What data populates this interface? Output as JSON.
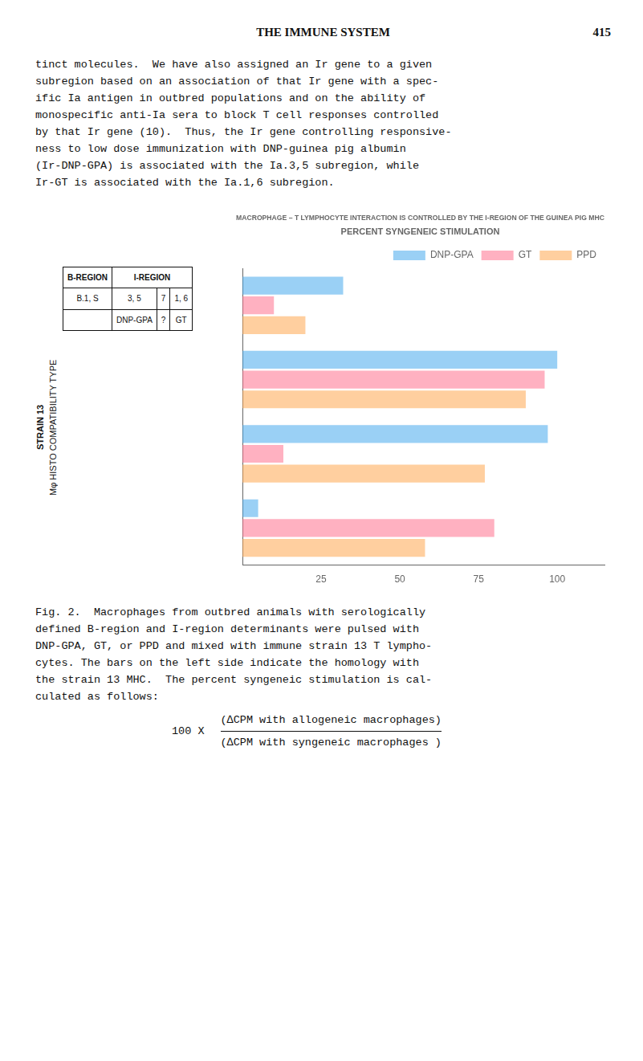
{
  "chart_data": {
    "type": "bar",
    "orientation": "horizontal",
    "title": "MACROPHAGE – T LYMPHOCYTE INTERACTION IS CONTROLLED BY THE I-REGION OF THE GUINEA PIG MHC",
    "subtitle": "PERCENT SYNGENEIC STIMULATION",
    "categories": [
      null,
      null,
      null,
      null
    ],
    "series": [
      {
        "name": "DNP-GPA",
        "values": [
          32,
          100,
          97,
          5
        ]
      },
      {
        "name": "GT",
        "values": [
          10,
          96,
          13,
          80
        ]
      },
      {
        "name": "PPD",
        "values": [
          20,
          90,
          77,
          58
        ]
      }
    ],
    "xlim": [
      0,
      115
    ],
    "xticks": [
      25,
      50,
      75,
      100
    ],
    "grid": false,
    "legend": "upper right",
    "tick_labels": "x",
    "annotations": [
      [
        "THE IMMUNE SYSTEM",
        "415"
      ],
      [
        "tinct molecules.  We have also assigned an Ir gene to a given",
        "subregion based on an association of that Ir gene with a spec-",
        "ific Ia antigen in outbred populations and on the ability of",
        "monospecific anti-Ia sera to block T cell responses controlled",
        "by that Ir gene (10).  Thus, the Ir gene controlling responsive-",
        "ness to low dose immunization with DNP-guinea pig albumin",
        "(Ir-DNP-GPA) is associated with the Ia.3,5 subregion, while",
        "Ir-GT is associated with the Ia.1,6 subregion."
      ],
      [
        "STRAIN 13",
        "B-REGION",
        "I-REGION",
        "B.1, S",
        "3, 5",
        "7",
        "1, 6",
        "DNP-GPA",
        "?",
        "GT",
        "Mφ HISTO COMPATIBILITY TYPE"
      ],
      [
        "Fig. 2.  Macrophages from outbred animals with serologically",
        "defined B-region and I-region determinants were pulsed with",
        "DNP-GPA, GT, or PPD and mixed with immune strain 13 T lympho-",
        "cytes. The bars on the left side indicate the homology with",
        "the strain 13 MHC.  The percent syngeneic stimulation is cal-",
        "culated as follows:"
      ],
      [
        "100 X",
        "(∆CPM with allogeneic macrophages)",
        "(∆CPM with syngeneic macrophages )"
      ]
    ]
  }
}
